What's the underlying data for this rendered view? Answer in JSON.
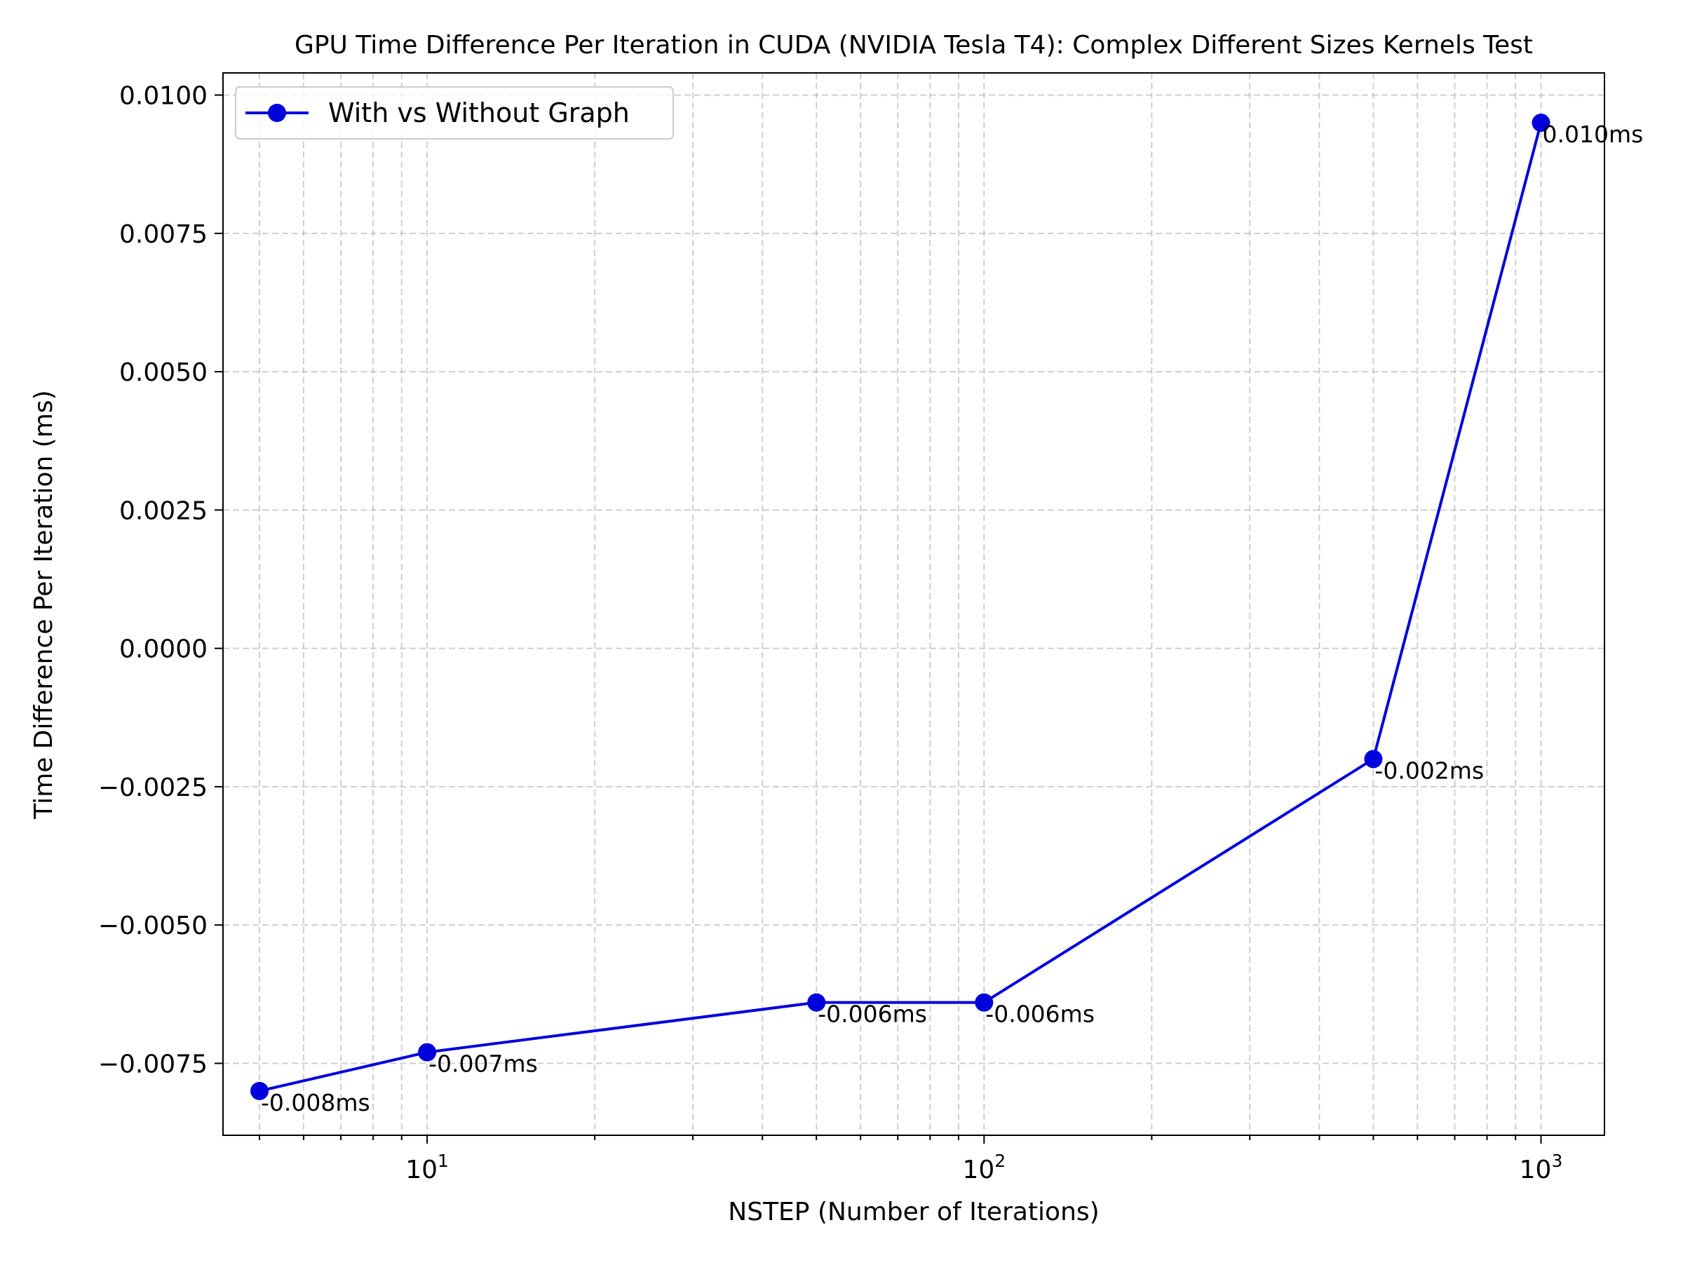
{
  "chart_data": {
    "type": "line",
    "title": "GPU Time Difference Per Iteration in CUDA (NVIDIA Tesla T4): Complex Different Sizes Kernels Test",
    "xlabel": "NSTEP (Number of Iterations)",
    "ylabel": "Time Difference Per Iteration (ms)",
    "xscale": "log",
    "xlim": [
      4.3,
      1300
    ],
    "ylim": [
      -0.0088,
      0.0104
    ],
    "grid": true,
    "legend_position": "top-left",
    "x_ticks": [
      {
        "base": "10",
        "exp": "1",
        "value": 10
      },
      {
        "base": "10",
        "exp": "2",
        "value": 100
      },
      {
        "base": "10",
        "exp": "3",
        "value": 1000
      }
    ],
    "y_ticks": [
      {
        "value": 0.01,
        "label": "0.0100"
      },
      {
        "value": 0.0075,
        "label": "0.0075"
      },
      {
        "value": 0.005,
        "label": "0.0050"
      },
      {
        "value": 0.0025,
        "label": "0.0025"
      },
      {
        "value": 0.0,
        "label": "0.0000"
      },
      {
        "value": -0.0025,
        "label": "−0.0025"
      },
      {
        "value": -0.005,
        "label": "−0.0050"
      },
      {
        "value": -0.0075,
        "label": "−0.0075"
      }
    ],
    "series": [
      {
        "name": "With vs Without Graph",
        "color": "#0000dd",
        "x": [
          5,
          10,
          50,
          100,
          500,
          1000
        ],
        "y": [
          -0.008,
          -0.0073,
          -0.0064,
          -0.0064,
          -0.002,
          0.0095
        ],
        "labels": [
          "-0.008ms",
          "-0.007ms",
          "-0.006ms",
          "-0.006ms",
          "-0.002ms",
          "0.010ms"
        ]
      }
    ]
  }
}
